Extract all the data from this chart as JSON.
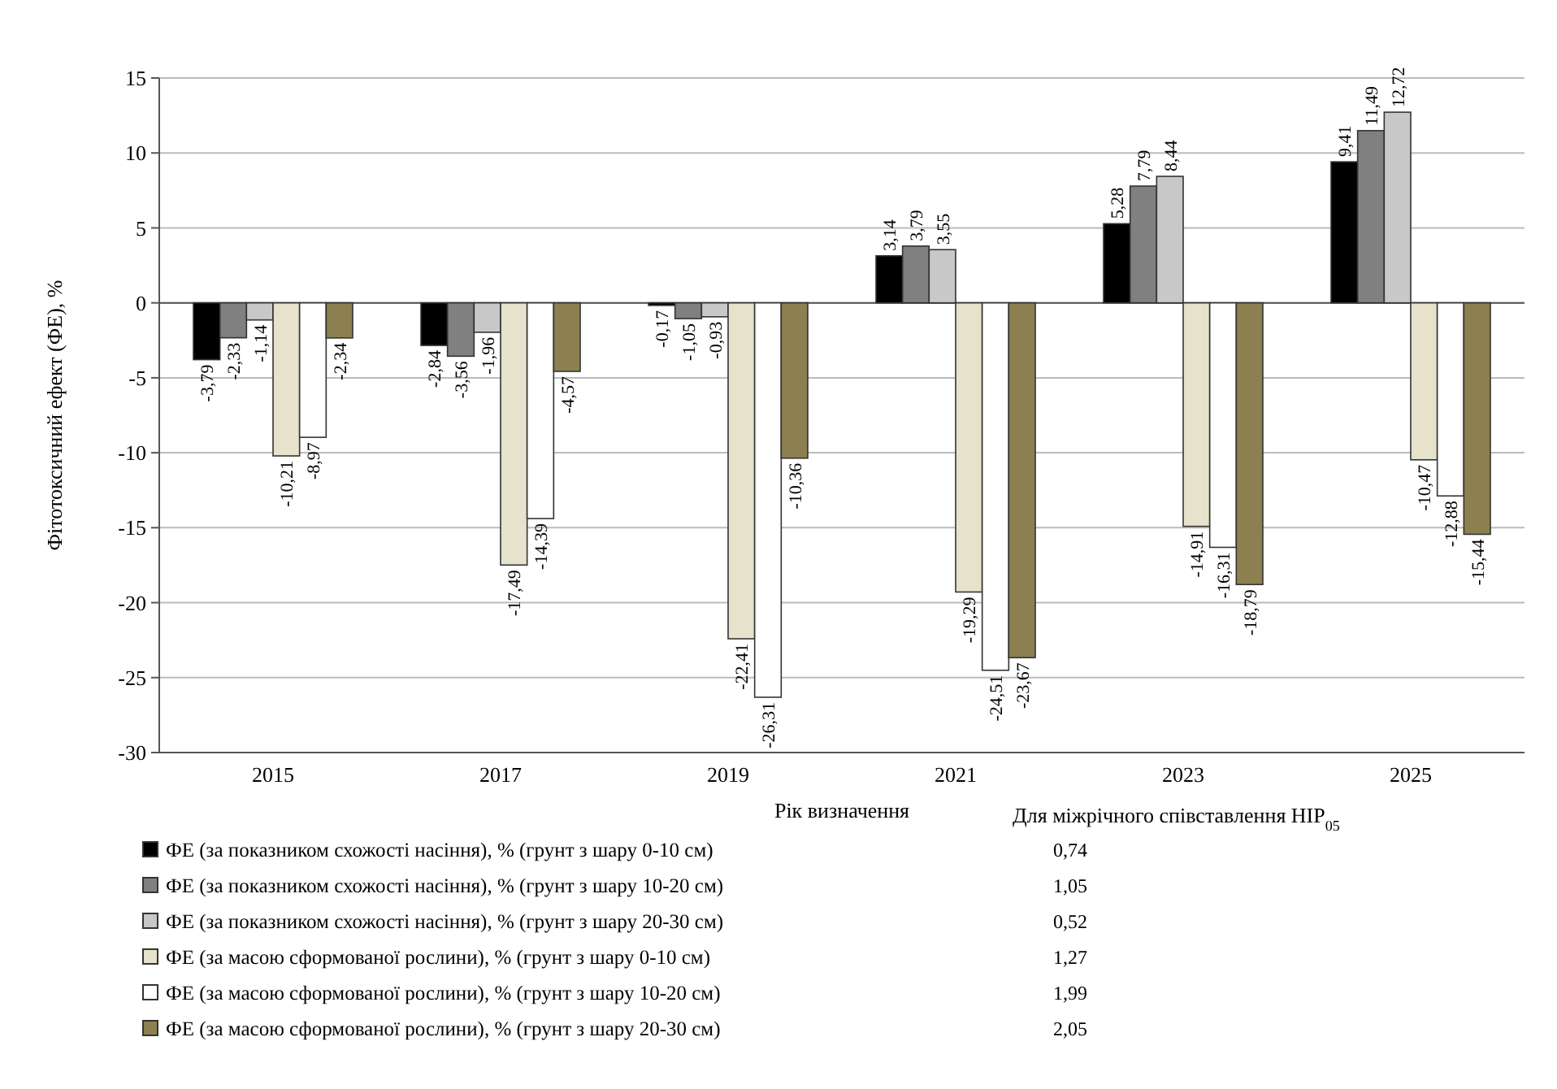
{
  "chart_data": {
    "type": "bar",
    "ylabel": "Фітотоксичний ефект (ФЕ), %",
    "xlabel": "Рік визначення",
    "categories": [
      "2015",
      "2017",
      "2019",
      "2021",
      "2023",
      "2025"
    ],
    "series": [
      {
        "name": "ФЕ (за показником схожості насіння), % (грунт з шару 0-10 см)",
        "color": "#000000",
        "values": [
          -3.79,
          -2.84,
          -0.17,
          3.14,
          5.28,
          9.41
        ],
        "value_labels": [
          "-3,79",
          "-2,84",
          "-0,17",
          "3,14",
          "5,28",
          "9,41"
        ]
      },
      {
        "name": "ФЕ (за показником схожості насіння), % (грунт з шару 10-20 см)",
        "color": "#808080",
        "values": [
          -2.33,
          -3.56,
          -1.05,
          3.79,
          7.79,
          11.49
        ],
        "value_labels": [
          "-2,33",
          "-3,56",
          "-1,05",
          "3,79",
          "7,79",
          "11,49"
        ]
      },
      {
        "name": "ФЕ (за показником схожості насіння), % (грунт з шару 20-30 см)",
        "color": "#c8c8c8",
        "values": [
          -1.14,
          -1.96,
          -0.93,
          3.55,
          8.44,
          12.72
        ],
        "value_labels": [
          "-1,14",
          "-1,96",
          "-0,93",
          "3,55",
          "8,44",
          "12,72"
        ]
      },
      {
        "name": "ФЕ (за масою сформованої рослини), % (грунт з шару 0-10 см)",
        "color": "#e6e2cc",
        "values": [
          -10.21,
          -17.49,
          -22.41,
          -19.29,
          -14.91,
          -10.47
        ],
        "value_labels": [
          "-10,21",
          "-17,49",
          "-22,41",
          "-19,29",
          "-14,91",
          "-10,47"
        ]
      },
      {
        "name": "ФЕ (за масою сформованої рослини), % (грунт з шару 10-20 см)",
        "color": "#ffffff",
        "values": [
          -8.97,
          -14.39,
          -26.31,
          -24.51,
          -16.31,
          -12.88
        ],
        "value_labels": [
          "-8,97",
          "-14,39",
          "-26,31",
          "-24,51",
          "-16,31",
          "-12,88"
        ]
      },
      {
        "name": "ФЕ (за масою сформованої рослини), % (грунт з шару 20-30 см)",
        "color": "#8c8050",
        "values": [
          -2.34,
          -4.57,
          -10.36,
          -23.67,
          -18.79,
          -15.44
        ],
        "value_labels": [
          "-2,34",
          "-4,57",
          "-10,36",
          "-23,67",
          "-18,79",
          "-15,44"
        ]
      }
    ],
    "ylim": [
      -30,
      15
    ],
    "yticks": [
      -30,
      -25,
      -20,
      -15,
      -10,
      -5,
      0,
      5,
      10,
      15
    ],
    "grid": "y",
    "legend": "bottom",
    "annotations": [
      "Для міжрічного співставлення НІР$_{05}$",
      "0,74",
      "1,05",
      "0,52",
      "1,27",
      "1,99",
      "2,05"
    ]
  }
}
